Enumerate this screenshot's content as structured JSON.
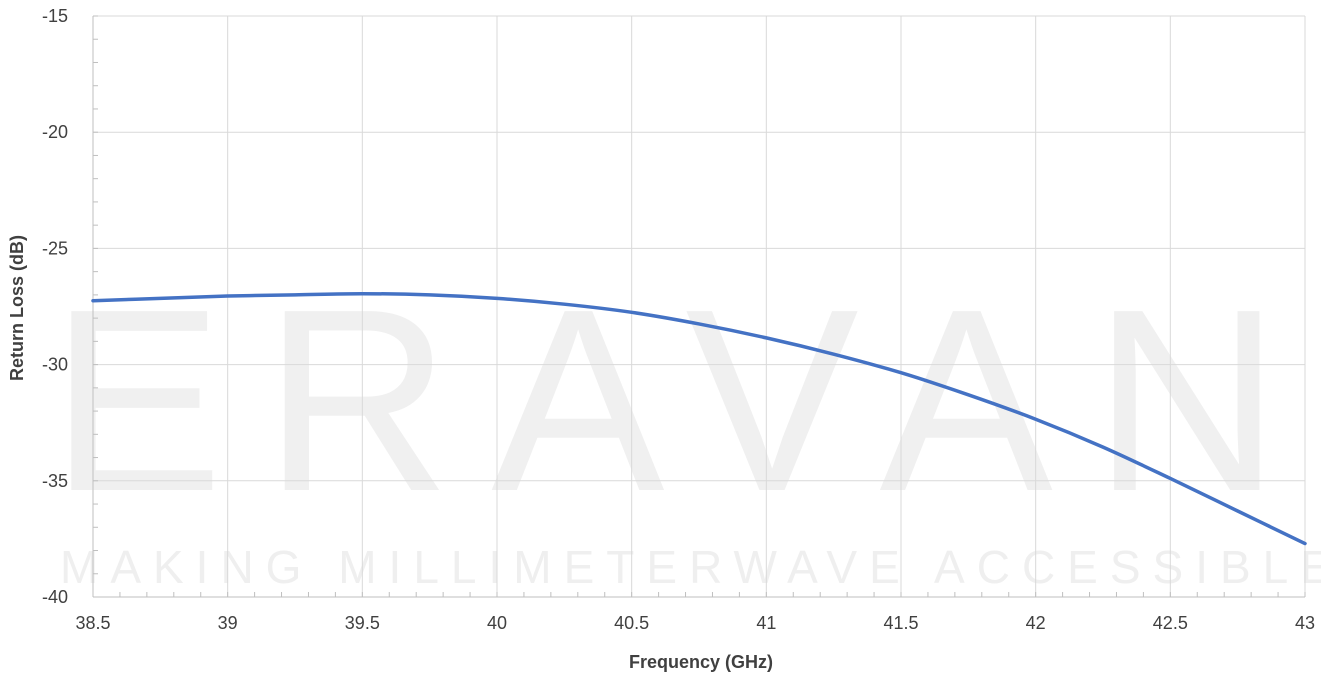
{
  "chart_data": {
    "type": "line",
    "title": "",
    "xlabel": "Frequency (GHz)",
    "ylabel": "Return Loss (dB)",
    "xlim": [
      38.5,
      43
    ],
    "ylim": [
      -40,
      -15
    ],
    "x_ticks": [
      "38.5",
      "39",
      "39.5",
      "40",
      "40.5",
      "41",
      "41.5",
      "42",
      "42.5",
      "43"
    ],
    "y_ticks": [
      "-15",
      "-20",
      "-25",
      "-30",
      "-35",
      "-40"
    ],
    "grid": true,
    "legend": "none",
    "series": [
      {
        "color": "#4472c4",
        "x": [
          38.5,
          38.75,
          39.0,
          39.25,
          39.5,
          39.75,
          40.0,
          40.25,
          40.5,
          40.75,
          41.0,
          41.25,
          41.5,
          41.75,
          42.0,
          42.25,
          42.5,
          42.75,
          43.0
        ],
        "y": [
          -27.25,
          -27.15,
          -27.05,
          -27.0,
          -26.95,
          -27.0,
          -27.15,
          -27.4,
          -27.75,
          -28.25,
          -28.85,
          -29.55,
          -30.35,
          -31.3,
          -32.35,
          -33.55,
          -34.9,
          -36.3,
          -37.7
        ]
      }
    ]
  },
  "watermark": {
    "brand": "ERAVANT",
    "tagline": "MAKING MILLIMETERWAVE ACCESSIBLE"
  }
}
